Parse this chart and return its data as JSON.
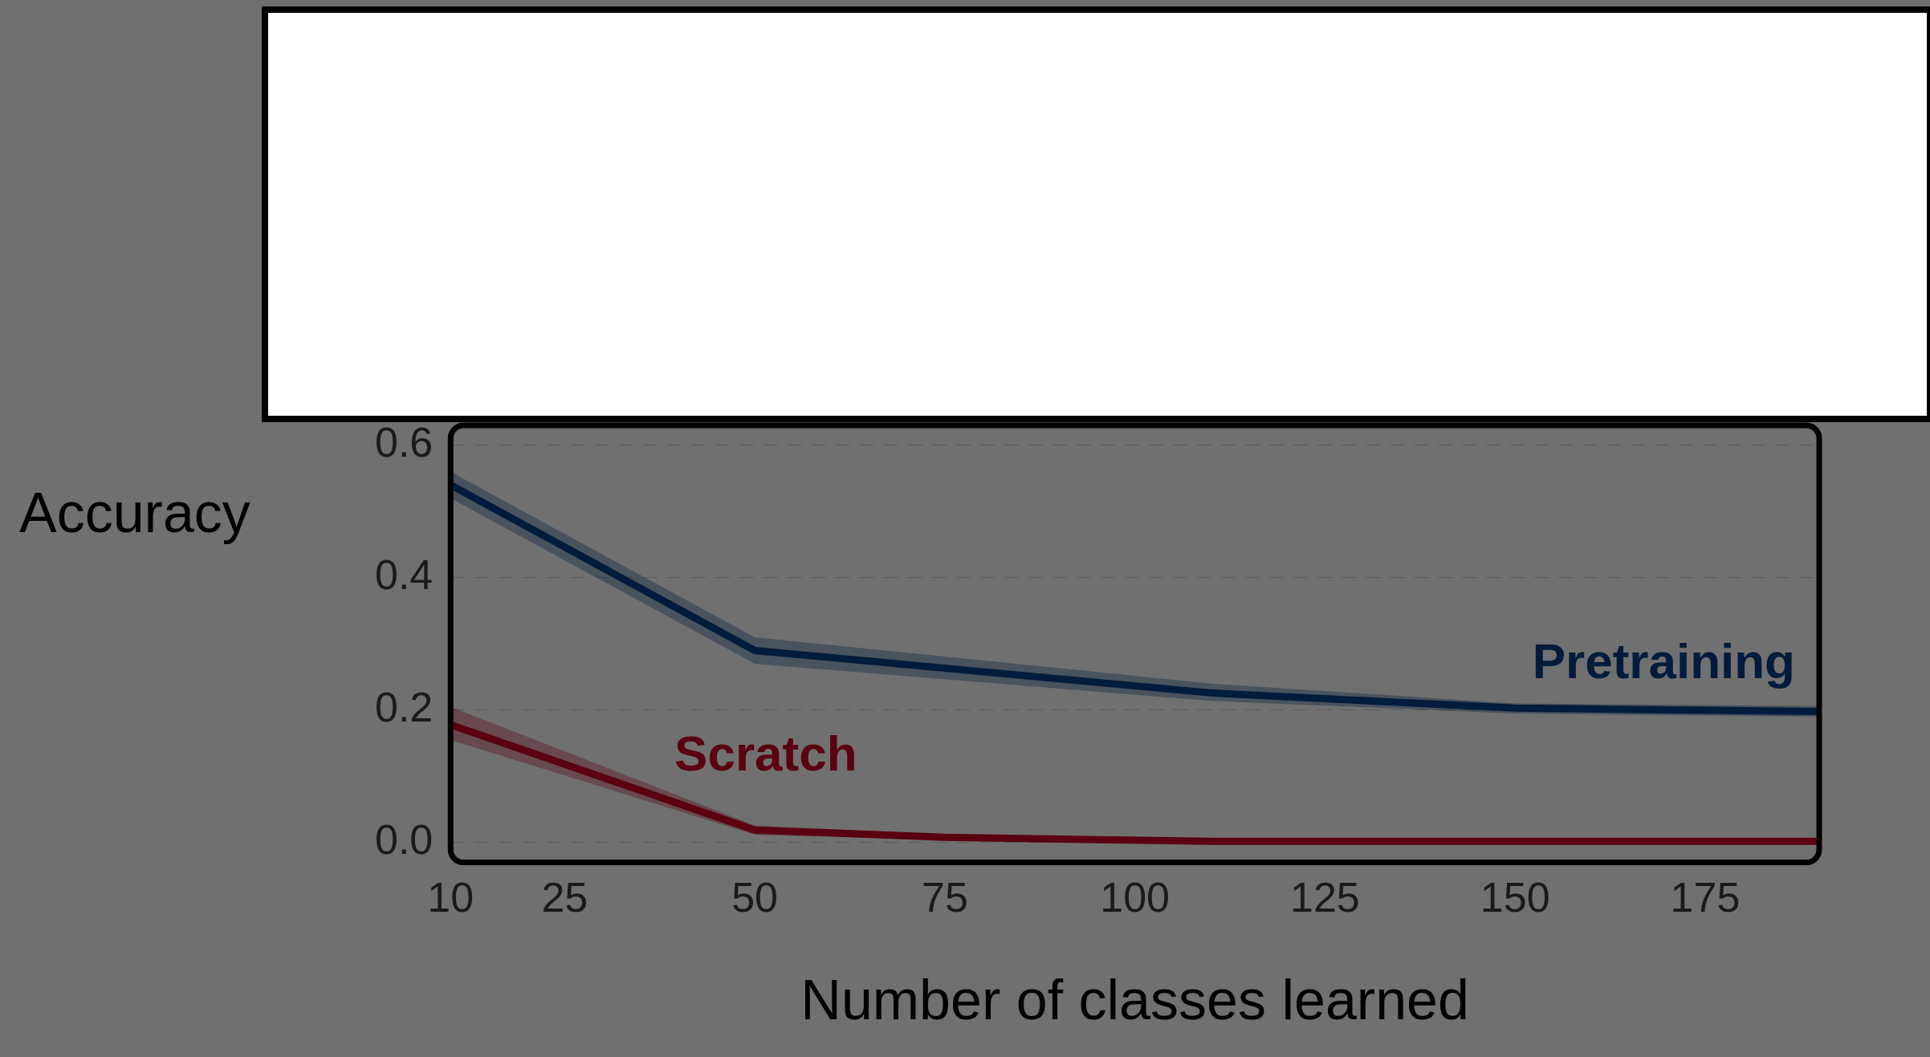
{
  "chart_data": {
    "type": "line",
    "xlabel": "Number of classes learned",
    "ylabel": "Accuracy",
    "xlim": [
      10,
      190
    ],
    "xticks": [
      10,
      25,
      50,
      75,
      100,
      125,
      150,
      175
    ],
    "ylim": [
      -0.03,
      0.63
    ],
    "yticks": [
      {
        "value": 0,
        "label": "0.0"
      },
      {
        "value": 0.2,
        "label": "0.2"
      },
      {
        "value": 0.4,
        "label": "0.4"
      },
      {
        "value": 0.6,
        "label": "0.6"
      }
    ],
    "grid": "y",
    "legend": false,
    "marker": "none",
    "line_style": "solid",
    "series": [
      {
        "name": "Pretraining",
        "color": "#001c3c",
        "x": [
          10,
          50,
          110,
          150,
          190
        ],
        "values": [
          0.54,
          0.29,
          0.226,
          0.203,
          0.198
        ],
        "lower": [
          0.52,
          0.27,
          0.214,
          0.195,
          0.19
        ],
        "upper": [
          0.56,
          0.31,
          0.24,
          0.21,
          0.206
        ]
      },
      {
        "name": "Scratch",
        "color": "#5a0010",
        "x": [
          10,
          50,
          75,
          110,
          150,
          190
        ],
        "values": [
          0.178,
          0.019,
          0.008,
          0.002,
          0.002,
          0.002
        ],
        "lower": [
          0.155,
          0.012,
          0.004,
          0.0,
          0.0,
          0.0
        ],
        "upper": [
          0.205,
          0.026,
          0.012,
          0.005,
          0.005,
          0.005
        ]
      }
    ]
  }
}
